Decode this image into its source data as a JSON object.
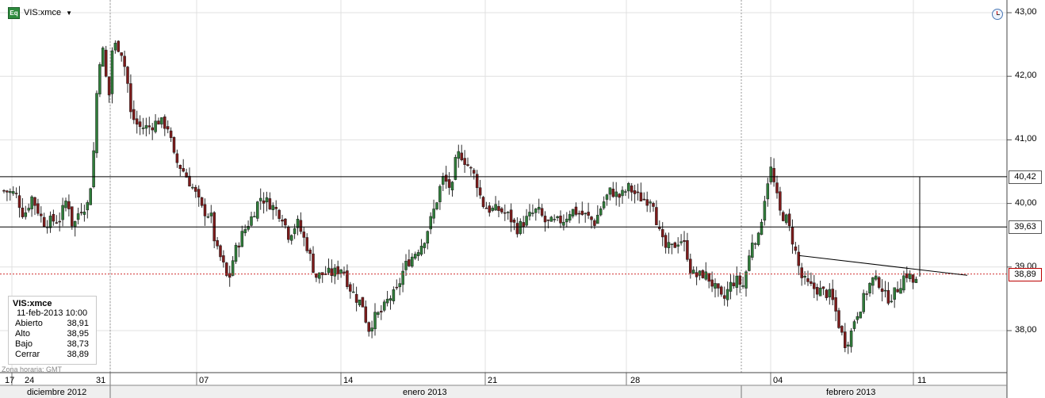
{
  "header": {
    "icon_label": "Eq",
    "ticker": "VIS:xmce"
  },
  "colors": {
    "up": "#2f7d3a",
    "down": "#7d1b1b",
    "last_line": "#d03030",
    "grid": "#e0e0e0"
  },
  "yaxis_labels": [
    "43,00",
    "42,00",
    "41,00",
    "40,00",
    "39,00",
    "38,00"
  ],
  "price_boxes": {
    "upper": "40,42",
    "lower": "39,63",
    "last": "38,89"
  },
  "xaxis_labels": [
    "17",
    "24",
    "31",
    "07",
    "14",
    "21",
    "28",
    "04",
    "11"
  ],
  "month_labels": [
    "diciembre 2012",
    "enero 2013",
    "febrero 2013"
  ],
  "info_box": {
    "title": "VIS:xmce",
    "datetime": "11-feb-2013 10:00",
    "rows": [
      {
        "label": "Abierto",
        "value": "38,91"
      },
      {
        "label": "Alto",
        "value": "38,95"
      },
      {
        "label": "Bajo",
        "value": "38,73"
      },
      {
        "label": "Cerrar",
        "value": "38,89"
      }
    ]
  },
  "timezone": "Zona horaria: GMT",
  "chart_data": {
    "type": "candlestick",
    "title": "VIS:xmce",
    "ylim": [
      37.5,
      43.0
    ],
    "yticks": [
      38,
      39,
      40,
      41,
      42,
      43
    ],
    "xlim": [
      0,
      1270
    ],
    "horizontal_levels": [
      40.42,
      39.63
    ],
    "last_price": 38.89,
    "trendline": [
      [
        1008,
        39.18
      ],
      [
        1220,
        38.87
      ]
    ],
    "spike_line": {
      "x": 1160,
      "from": 38.85,
      "to": 40.42
    },
    "day_dividers": [
      15,
      139,
      248,
      430,
      612,
      790,
      972,
      1152
    ],
    "week_dividers": [
      139,
      935
    ],
    "anchors": [
      [
        5,
        40.2
      ],
      [
        20,
        40.15
      ],
      [
        30,
        39.8
      ],
      [
        40,
        40.1
      ],
      [
        55,
        39.7
      ],
      [
        75,
        39.75
      ],
      [
        85,
        40.1
      ],
      [
        92,
        39.6
      ],
      [
        100,
        39.9
      ],
      [
        112,
        40.0
      ],
      [
        118,
        40.8
      ],
      [
        124,
        42.2
      ],
      [
        130,
        42.4
      ],
      [
        137,
        41.6
      ],
      [
        142,
        42.5
      ],
      [
        152,
        42.45
      ],
      [
        160,
        42.0
      ],
      [
        165,
        41.4
      ],
      [
        175,
        41.2
      ],
      [
        188,
        41.2
      ],
      [
        200,
        41.3
      ],
      [
        212,
        41.2
      ],
      [
        220,
        40.7
      ],
      [
        232,
        40.5
      ],
      [
        245,
        40.2
      ],
      [
        255,
        39.9
      ],
      [
        266,
        39.8
      ],
      [
        272,
        39.3
      ],
      [
        280,
        39.1
      ],
      [
        288,
        38.75
      ],
      [
        295,
        39.2
      ],
      [
        305,
        39.5
      ],
      [
        318,
        39.8
      ],
      [
        328,
        40.1
      ],
      [
        340,
        40.0
      ],
      [
        348,
        39.9
      ],
      [
        356,
        39.8
      ],
      [
        364,
        39.5
      ],
      [
        375,
        39.7
      ],
      [
        388,
        39.3
      ],
      [
        398,
        38.85
      ],
      [
        410,
        38.9
      ],
      [
        420,
        38.9
      ],
      [
        432,
        39.0
      ],
      [
        440,
        38.7
      ],
      [
        450,
        38.5
      ],
      [
        458,
        38.4
      ],
      [
        464,
        38.0
      ],
      [
        472,
        38.2
      ],
      [
        482,
        38.3
      ],
      [
        490,
        38.5
      ],
      [
        500,
        38.6
      ],
      [
        510,
        39.0
      ],
      [
        522,
        39.2
      ],
      [
        534,
        39.4
      ],
      [
        545,
        39.8
      ],
      [
        552,
        40.1
      ],
      [
        558,
        40.4
      ],
      [
        565,
        40.3
      ],
      [
        570,
        40.2
      ],
      [
        575,
        40.7
      ],
      [
        580,
        40.8
      ],
      [
        590,
        40.6
      ],
      [
        600,
        40.4
      ],
      [
        608,
        40.0
      ],
      [
        618,
        39.9
      ],
      [
        630,
        39.9
      ],
      [
        642,
        39.8
      ],
      [
        652,
        39.6
      ],
      [
        660,
        39.7
      ],
      [
        668,
        39.8
      ],
      [
        678,
        39.9
      ],
      [
        688,
        39.7
      ],
      [
        700,
        39.7
      ],
      [
        712,
        39.75
      ],
      [
        720,
        39.9
      ],
      [
        730,
        39.85
      ],
      [
        740,
        39.8
      ],
      [
        750,
        39.7
      ],
      [
        760,
        40.0
      ],
      [
        770,
        40.2
      ],
      [
        782,
        40.1
      ],
      [
        793,
        40.25
      ],
      [
        805,
        40.1
      ],
      [
        815,
        40.05
      ],
      [
        823,
        40.1
      ],
      [
        830,
        39.6
      ],
      [
        838,
        39.3
      ],
      [
        848,
        39.3
      ],
      [
        858,
        39.45
      ],
      [
        865,
        39.3
      ],
      [
        872,
        38.9
      ],
      [
        880,
        38.85
      ],
      [
        888,
        38.9
      ],
      [
        895,
        38.8
      ],
      [
        905,
        38.6
      ],
      [
        912,
        38.45
      ],
      [
        920,
        38.7
      ],
      [
        928,
        38.8
      ],
      [
        937,
        38.7
      ],
      [
        944,
        39.1
      ],
      [
        950,
        39.5
      ],
      [
        956,
        39.4
      ],
      [
        962,
        39.9
      ],
      [
        967,
        40.3
      ],
      [
        972,
        40.55
      ],
      [
        978,
        40.2
      ],
      [
        984,
        39.85
      ],
      [
        992,
        39.75
      ],
      [
        998,
        39.5
      ],
      [
        1004,
        39.2
      ],
      [
        1010,
        38.85
      ],
      [
        1020,
        38.7
      ],
      [
        1030,
        38.65
      ],
      [
        1040,
        38.6
      ],
      [
        1048,
        38.55
      ],
      [
        1054,
        38.3
      ],
      [
        1060,
        38.0
      ],
      [
        1066,
        37.8
      ],
      [
        1072,
        37.9
      ],
      [
        1078,
        38.2
      ],
      [
        1086,
        38.4
      ],
      [
        1094,
        38.65
      ],
      [
        1100,
        38.8
      ],
      [
        1110,
        38.75
      ],
      [
        1118,
        38.5
      ],
      [
        1126,
        38.55
      ],
      [
        1134,
        38.7
      ],
      [
        1142,
        38.9
      ],
      [
        1148,
        38.85
      ],
      [
        1154,
        38.7
      ],
      [
        1158,
        38.89
      ]
    ]
  }
}
